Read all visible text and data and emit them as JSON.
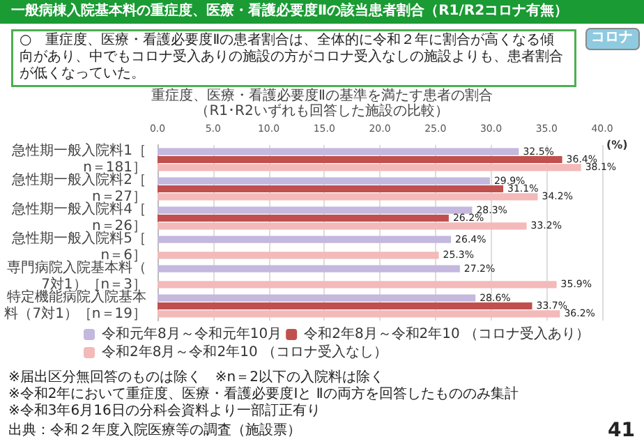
{
  "chart_data": {
    "type": "bar",
    "orientation": "horizontal",
    "title": "一般病棟入院基本料の重症度、医療・看護必要度Ⅱの該当患者割合（R1/R2コロナ有無）",
    "subtitle": "重症度、医療・看護必要度Ⅱの基準を満たす患者の割合",
    "annotations": [
      "（R1･R2いずれも回答した施設の比較）",
      "コロナ",
      "○　重症度、医療・看護必要度Ⅱの患者割合は、全体的に令和２年に割合が高くなる傾向があり、中でもコロナ受入ありの施設の方がコロナ受入なしの施設よりも、患者割合が低くなっていた。",
      "※届出区分無回答のものは除く　※n＝2以下の入院料は除く",
      "※令和2年において重症度、医療・看護必要度Ⅰと Ⅱの両方を回答したもののみ集計",
      "※令和3年6月16日の分科会資料より一部訂正有り",
      "出典：令和２年度入院医療等の調査（施設票）",
      "41"
    ],
    "xlabel": "(%)",
    "categories": [
      "急性期一般入院料1［n＝181］",
      "急性期一般入院料2［n＝27］",
      "急性期一般入院料4［n＝26］",
      "急性期一般入院料5［n＝6］",
      "専門病院入院基本料（7対1）［n＝3］",
      "特定機能病院入院基本料（7対1）［n＝19］"
    ],
    "series": [
      {
        "name": "令和元年8月～令和元年10月",
        "color": "#c4b8de",
        "values": [
          32.5,
          29.9,
          28.3,
          26.4,
          27.2,
          28.6
        ],
        "value_labels": [
          "32.5%",
          "29.9%",
          "28.3%",
          "26.4%",
          "27.2%",
          "28.6%"
        ]
      },
      {
        "name": "令和2年8月～令和2年10 （コロナ受入あり）",
        "color": "#c0504d",
        "values": [
          36.4,
          31.1,
          26.2,
          null,
          null,
          33.7
        ],
        "value_labels": [
          "36.4%",
          "31.1%",
          "26.2%",
          null,
          null,
          "33.7%"
        ]
      },
      {
        "name": "令和2年8月～令和2年10 （コロナ受入なし）",
        "color": "#f4b9b9",
        "values": [
          38.1,
          34.2,
          33.2,
          25.3,
          35.9,
          36.2
        ],
        "value_labels": [
          "38.1%",
          "34.2%",
          "33.2%",
          "25.3%",
          "35.9%",
          "36.2%"
        ]
      }
    ],
    "xlim": [
      0,
      40
    ],
    "xticks": [
      {
        "value": 0,
        "label": "0.0"
      },
      {
        "value": 5,
        "label": "5.0"
      },
      {
        "value": 10,
        "label": "10.0"
      },
      {
        "value": 15,
        "label": "15.0"
      },
      {
        "value": 20,
        "label": "20.0"
      },
      {
        "value": 25,
        "label": "25.0"
      },
      {
        "value": 30,
        "label": "30.0"
      },
      {
        "value": 35,
        "label": "35.0"
      },
      {
        "value": 40,
        "label": "40.0"
      }
    ],
    "grid": "x",
    "legend": "bottom"
  }
}
